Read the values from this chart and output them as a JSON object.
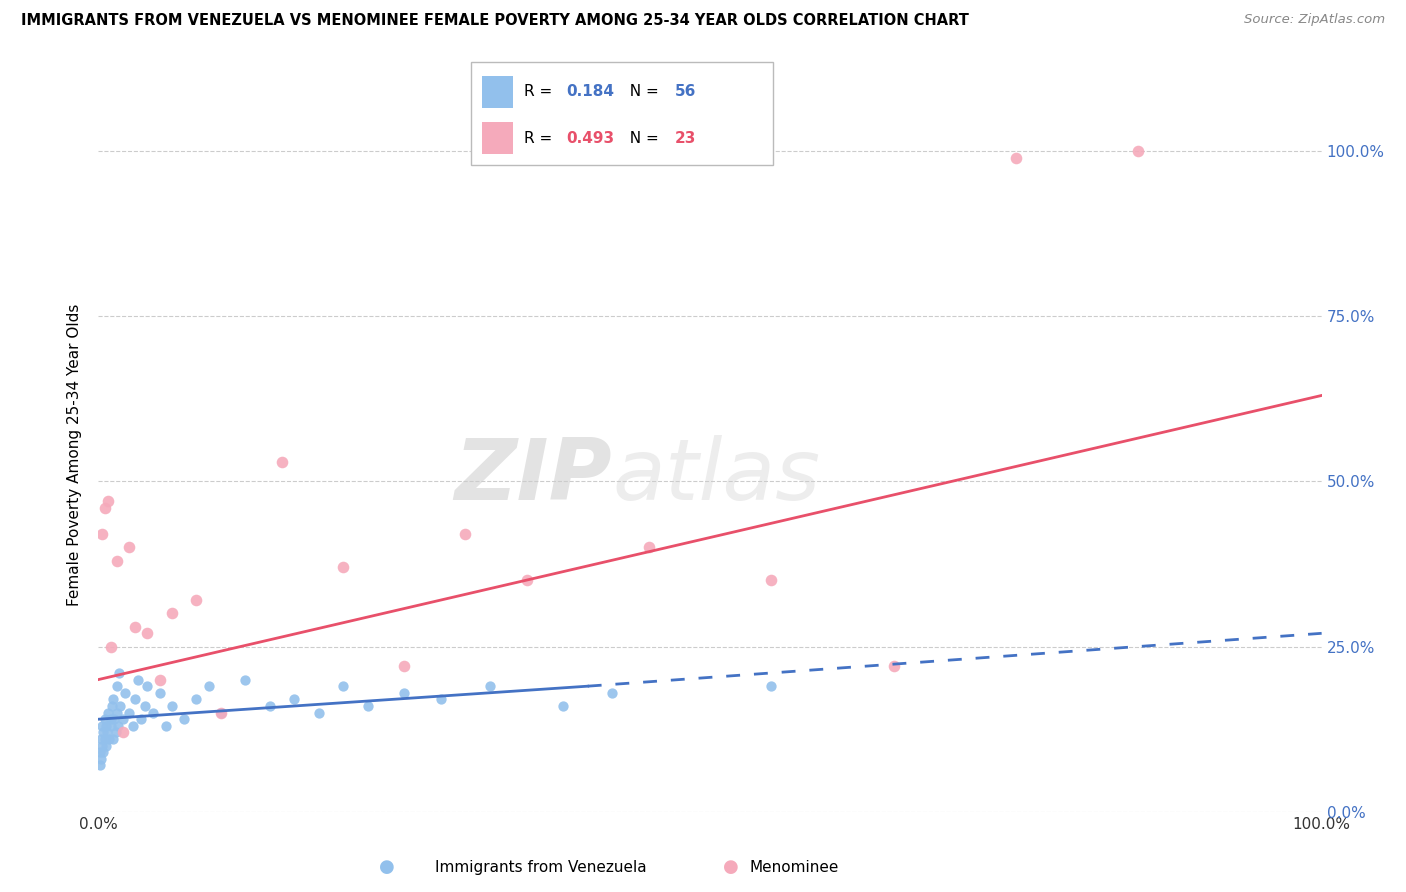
{
  "title": "IMMIGRANTS FROM VENEZUELA VS MENOMINEE FEMALE POVERTY AMONG 25-34 YEAR OLDS CORRELATION CHART",
  "source": "Source: ZipAtlas.com",
  "ylabel": "Female Poverty Among 25-34 Year Olds",
  "legend_blue_r": "0.184",
  "legend_blue_n": "56",
  "legend_pink_r": "0.493",
  "legend_pink_n": "23",
  "blue_color": "#92C0EC",
  "pink_color": "#F5AABB",
  "blue_line_color": "#4472C4",
  "pink_line_color": "#E8506A",
  "blue_scatter_x": [
    0.1,
    0.1,
    0.2,
    0.2,
    0.3,
    0.3,
    0.4,
    0.4,
    0.5,
    0.5,
    0.6,
    0.6,
    0.7,
    0.8,
    0.9,
    1.0,
    1.0,
    1.1,
    1.2,
    1.2,
    1.3,
    1.4,
    1.5,
    1.5,
    1.6,
    1.7,
    1.8,
    2.0,
    2.2,
    2.5,
    2.8,
    3.0,
    3.2,
    3.5,
    3.8,
    4.0,
    4.5,
    5.0,
    5.5,
    6.0,
    7.0,
    8.0,
    9.0,
    10.0,
    12.0,
    14.0,
    16.0,
    18.0,
    20.0,
    22.0,
    25.0,
    28.0,
    32.0,
    38.0,
    42.0,
    55.0
  ],
  "blue_scatter_y": [
    7,
    9,
    8,
    11,
    10,
    13,
    9,
    12,
    11,
    14,
    10,
    13,
    12,
    15,
    11,
    13,
    14,
    16,
    11,
    17,
    14,
    12,
    19,
    15,
    13,
    21,
    16,
    14,
    18,
    15,
    13,
    17,
    20,
    14,
    16,
    19,
    15,
    18,
    13,
    16,
    14,
    17,
    19,
    15,
    20,
    16,
    17,
    15,
    19,
    16,
    18,
    17,
    19,
    16,
    18,
    19
  ],
  "pink_scatter_x": [
    0.3,
    0.5,
    0.8,
    1.0,
    1.5,
    2.0,
    2.5,
    3.0,
    4.0,
    5.0,
    6.0,
    8.0,
    10.0,
    15.0,
    20.0,
    25.0,
    30.0,
    35.0,
    45.0,
    55.0,
    65.0,
    75.0,
    85.0
  ],
  "pink_scatter_y": [
    42,
    46,
    47,
    25,
    38,
    12,
    40,
    28,
    27,
    20,
    30,
    32,
    15,
    53,
    37,
    22,
    42,
    35,
    40,
    35,
    22,
    99,
    100
  ],
  "blue_solid_x0": 0,
  "blue_solid_x1": 40,
  "blue_solid_y0": 14,
  "blue_solid_y1": 19,
  "blue_dash_x0": 40,
  "blue_dash_x1": 100,
  "blue_dash_y0": 19,
  "blue_dash_y1": 27,
  "pink_solid_x0": 0,
  "pink_solid_x1": 100,
  "pink_solid_y0": 20,
  "pink_solid_y1": 63,
  "xmin": 0,
  "xmax": 100,
  "ymin": 0,
  "ymax": 108,
  "yticks": [
    0,
    25,
    50,
    75,
    100
  ],
  "ytick_labels_left": [
    "",
    "",
    "",
    "",
    ""
  ],
  "ytick_labels_right": [
    "0.0%",
    "25.0%",
    "50.0%",
    "75.0%",
    "100.0%"
  ],
  "xtick_left": "0.0%",
  "xtick_right": "100.0%",
  "bottom_label1": "Immigrants from Venezuela",
  "bottom_label2": "Menominee",
  "watermark": "ZIPatlas"
}
